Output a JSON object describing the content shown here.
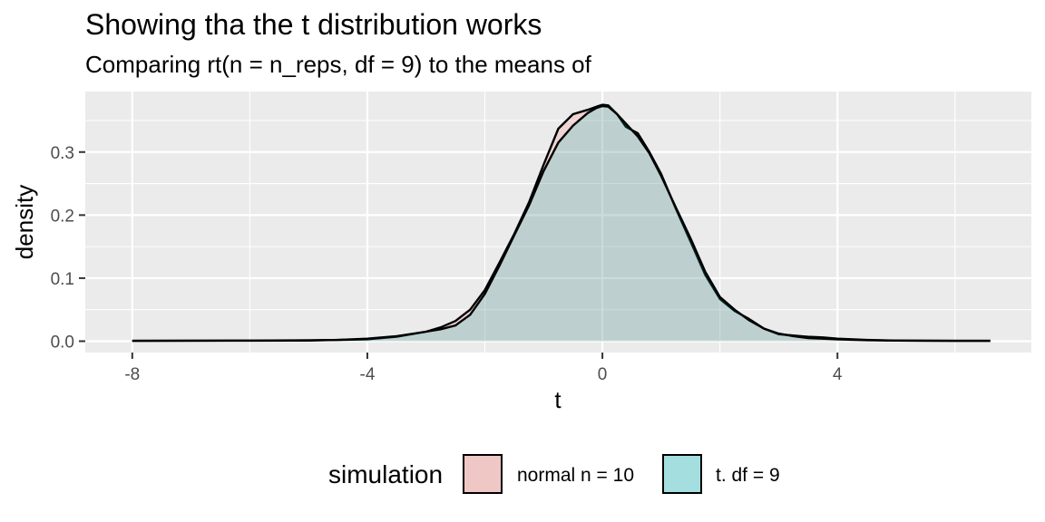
{
  "chart_data": {
    "type": "area",
    "title": "Showing tha the t distribution works",
    "subtitle": "Comparing rt(n = n_reps, df = 9) to the means of",
    "xlabel": "t",
    "ylabel": "density",
    "xlim": [
      -8.8,
      7.3
    ],
    "ylim": [
      -0.018,
      0.396
    ],
    "x_ticks": [
      -8,
      -4,
      0,
      4
    ],
    "x_tick_labels": [
      "-8",
      "-4",
      "0",
      "4"
    ],
    "y_ticks": [
      0.0,
      0.1,
      0.2,
      0.3
    ],
    "y_tick_labels": [
      "0.0",
      "0.1",
      "0.2",
      "0.3"
    ],
    "grid": true,
    "legend": {
      "title": "simulation",
      "position": "bottom",
      "entries": [
        "normal n = 10",
        "t. df = 9"
      ]
    },
    "colors": {
      "panel_bg": "#ebebeb",
      "grid": "#ffffff",
      "normal_fill": "#f8766d",
      "t_fill": "#00bfc4",
      "line": "#000000"
    },
    "series": [
      {
        "name": "normal n = 10",
        "fill": "#f8766d",
        "x": [
          -8.0,
          -6.0,
          -5.0,
          -4.5,
          -4.0,
          -3.5,
          -3.0,
          -2.75,
          -2.5,
          -2.25,
          -2.0,
          -1.75,
          -1.5,
          -1.25,
          -1.0,
          -0.75,
          -0.5,
          -0.25,
          -0.1,
          0.0,
          0.1,
          0.25,
          0.4,
          0.6,
          0.8,
          1.0,
          1.25,
          1.5,
          1.75,
          2.0,
          2.25,
          2.5,
          2.75,
          3.0,
          3.25,
          3.5,
          3.75,
          4.0,
          4.5,
          5.0,
          6.0,
          6.6
        ],
        "y": [
          0.0005,
          0.0008,
          0.001,
          0.002,
          0.003,
          0.007,
          0.015,
          0.022,
          0.032,
          0.05,
          0.081,
          0.125,
          0.17,
          0.22,
          0.28,
          0.337,
          0.36,
          0.367,
          0.372,
          0.375,
          0.374,
          0.36,
          0.34,
          0.33,
          0.3,
          0.265,
          0.21,
          0.158,
          0.105,
          0.067,
          0.048,
          0.035,
          0.02,
          0.011,
          0.009,
          0.007,
          0.006,
          0.004,
          0.002,
          0.001,
          0.0005,
          0.0005
        ]
      },
      {
        "name": "t. df = 9",
        "fill": "#00bfc4",
        "x": [
          -8.0,
          -6.0,
          -5.0,
          -4.5,
          -4.0,
          -3.5,
          -3.0,
          -2.75,
          -2.5,
          -2.25,
          -2.0,
          -1.75,
          -1.5,
          -1.25,
          -1.0,
          -0.75,
          -0.5,
          -0.25,
          -0.1,
          0.0,
          0.1,
          0.25,
          0.4,
          0.6,
          0.8,
          1.0,
          1.25,
          1.5,
          1.75,
          2.0,
          2.25,
          2.5,
          2.75,
          3.0,
          3.25,
          3.5,
          3.75,
          4.0,
          4.5,
          5.0,
          6.0,
          6.6
        ],
        "y": [
          0.0005,
          0.001,
          0.0015,
          0.002,
          0.004,
          0.008,
          0.015,
          0.019,
          0.025,
          0.042,
          0.075,
          0.12,
          0.168,
          0.215,
          0.27,
          0.315,
          0.342,
          0.362,
          0.37,
          0.373,
          0.372,
          0.36,
          0.345,
          0.325,
          0.298,
          0.262,
          0.212,
          0.163,
          0.11,
          0.07,
          0.05,
          0.033,
          0.02,
          0.012,
          0.008,
          0.005,
          0.004,
          0.003,
          0.0015,
          0.001,
          0.0005,
          0.0005
        ]
      }
    ]
  }
}
